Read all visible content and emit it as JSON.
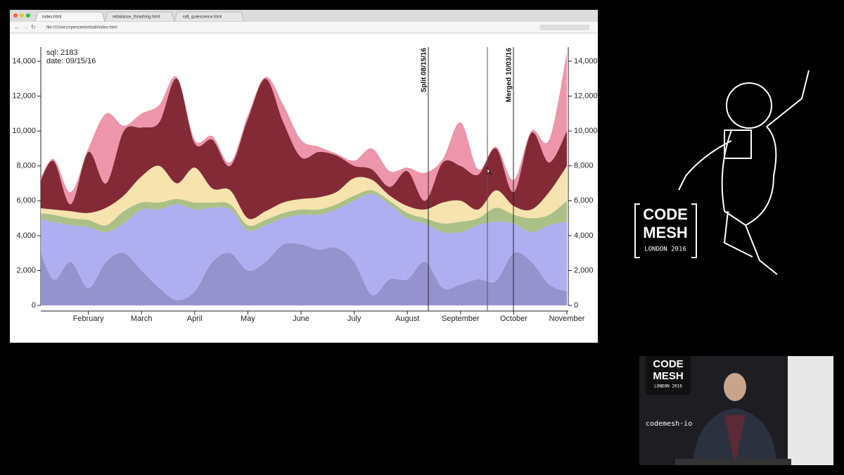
{
  "browser": {
    "tabs": [
      "index.html",
      "rebalance_thrashing.html",
      "raft_quiescence.html"
    ],
    "url": "file:///Users/spencerkimball/index.html"
  },
  "chart_data": {
    "type": "stacked-area",
    "info": [
      "sql: 2183",
      "date: 09/15/16"
    ],
    "markers": [
      "Split 08/15/16",
      "Merged 10/03/16"
    ],
    "categories": [
      null,
      null,
      null,
      "February",
      null,
      null,
      "March",
      null,
      null,
      "April",
      null,
      null,
      "May",
      null,
      null,
      "June",
      null,
      null,
      "July",
      null,
      null,
      "August",
      null,
      null,
      "September",
      null,
      null,
      "October",
      null,
      null,
      "November"
    ],
    "ylim": [
      0,
      14000
    ],
    "yticks": [
      0,
      {
        "value": 2000,
        "label": "2,000"
      },
      {
        "value": 4000,
        "label": "4,000"
      },
      {
        "value": 6000,
        "label": "6,000"
      },
      {
        "value": 8000,
        "label": "8,000"
      },
      {
        "value": 10000,
        "label": "10,000"
      },
      {
        "value": 12000,
        "label": "12,000"
      },
      {
        "value": 14000,
        "label": "14,000"
      }
    ],
    "series": [
      {
        "color": "#8f8ccb",
        "values": [
          4000,
          1500,
          2500,
          1000,
          2500,
          3000,
          2000,
          1000,
          300,
          800,
          2500,
          3000,
          2000,
          2500,
          3500,
          3500,
          3200,
          3300,
          2500,
          600,
          1500,
          1500,
          2500,
          1000,
          1200,
          1500,
          1400,
          3000,
          2500,
          1200,
          800
        ]
      },
      {
        "color": "#aaaaf0",
        "values": [
          1000,
          3300,
          2100,
          3500,
          1700,
          1700,
          3500,
          4500,
          5500,
          4700,
          3100,
          2500,
          2300,
          2100,
          1500,
          1700,
          2000,
          2200,
          3500,
          5800,
          4300,
          3500,
          2200,
          3200,
          3000,
          3100,
          3400,
          1700,
          1700,
          3400,
          4000
        ]
      },
      {
        "color": "#a7bd80",
        "values": [
          300,
          400,
          400,
          400,
          400,
          700,
          400,
          400,
          300,
          400,
          300,
          300,
          300,
          300,
          300,
          300,
          300,
          300,
          300,
          200,
          200,
          300,
          300,
          500,
          600,
          400,
          800,
          500,
          800,
          600,
          1200
        ]
      },
      {
        "color": "#f5e2aa",
        "values": [
          300,
          300,
          400,
          400,
          1000,
          900,
          1500,
          2100,
          900,
          2000,
          800,
          800,
          400,
          500,
          600,
          600,
          700,
          700,
          1000,
          600,
          300,
          400,
          500,
          1200,
          1200,
          500,
          1000,
          500,
          500,
          1300,
          2000
        ]
      },
      {
        "color": "#7c1f2b",
        "values": [
          700,
          2800,
          400,
          3500,
          1400,
          3700,
          2800,
          2500,
          6000,
          1400,
          2800,
          1400,
          5700,
          7600,
          4600,
          2400,
          2600,
          2100,
          700,
          600,
          500,
          2000,
          500,
          2300,
          2000,
          2000,
          2400,
          800,
          4400,
          1700,
          2000
        ]
      },
      {
        "color": "#ec90a6",
        "values": [
          200,
          100,
          700,
          200,
          4000,
          300,
          800,
          1000,
          100,
          200,
          200,
          200,
          200,
          100,
          1000,
          1000,
          300,
          100,
          300,
          1200,
          900,
          200,
          1600,
          200,
          2500,
          300,
          100,
          700,
          100,
          1300,
          4500
        ]
      }
    ]
  },
  "slide": {
    "logo": [
      "CODE",
      "MESH",
      "LONDON 2016"
    ],
    "caption": "codemesh·io"
  }
}
